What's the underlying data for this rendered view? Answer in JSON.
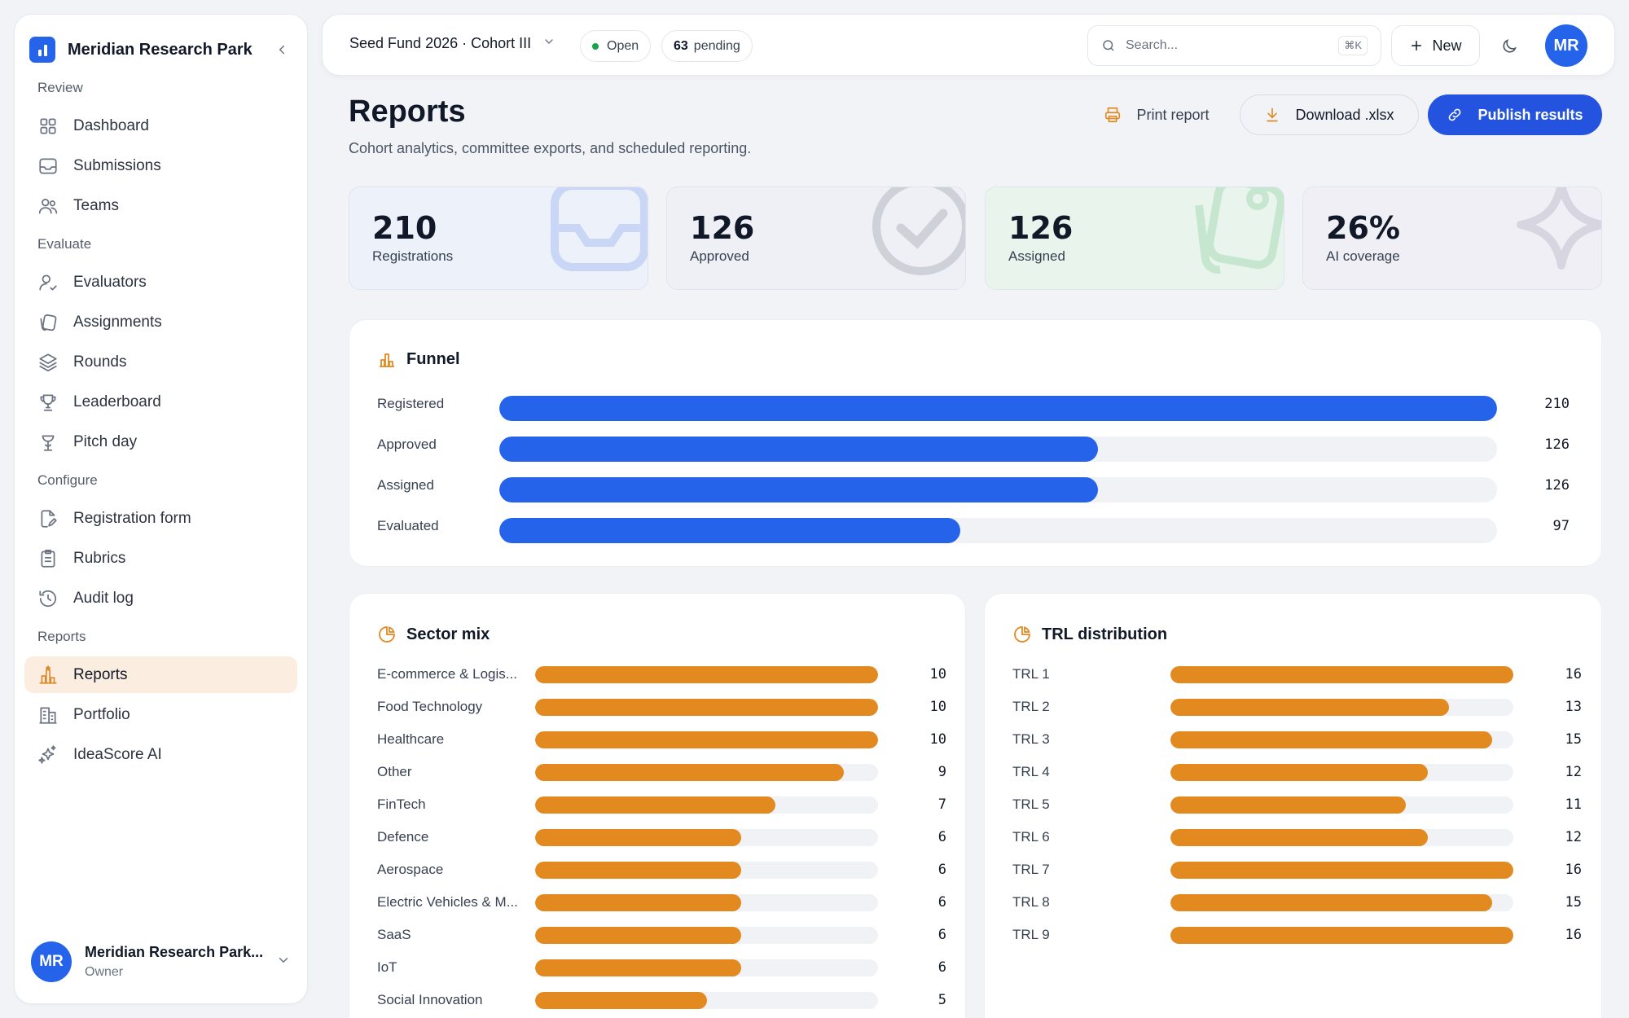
{
  "sidebar": {
    "brand": "Meridian Research Park",
    "sections": [
      {
        "label": "Review",
        "items": [
          {
            "label": "Dashboard",
            "icon": "dashboard-icon"
          },
          {
            "label": "Submissions",
            "icon": "inbox-icon"
          },
          {
            "label": "Teams",
            "icon": "users-icon"
          }
        ]
      },
      {
        "label": "Evaluate",
        "items": [
          {
            "label": "Evaluators",
            "icon": "user-check-icon"
          },
          {
            "label": "Assignments",
            "icon": "assignments-icon"
          },
          {
            "label": "Rounds",
            "icon": "layers-icon"
          },
          {
            "label": "Leaderboard",
            "icon": "trophy-icon"
          },
          {
            "label": "Pitch day",
            "icon": "presentation-icon"
          }
        ]
      },
      {
        "label": "Configure",
        "items": [
          {
            "label": "Registration form",
            "icon": "form-icon"
          },
          {
            "label": "Rubrics",
            "icon": "clipboard-icon"
          },
          {
            "label": "Audit log",
            "icon": "history-icon"
          }
        ]
      },
      {
        "label": "Reports",
        "items": [
          {
            "label": "Reports",
            "icon": "podium-icon",
            "active": true
          },
          {
            "label": "Portfolio",
            "icon": "building-icon"
          },
          {
            "label": "IdeaScore AI",
            "icon": "sparkles-icon"
          }
        ]
      }
    ],
    "user": {
      "initials": "MR",
      "name": "Meridian Research Park...",
      "role": "Owner"
    }
  },
  "topbar": {
    "cohort": "Seed Fund 2026 · Cohort III",
    "status": "Open",
    "pending_count": "63",
    "pending_label": "pending",
    "search_placeholder": "Search...",
    "search_shortcut": "⌘K",
    "new_label": "New",
    "avatar": "MR"
  },
  "page": {
    "title": "Reports",
    "subtitle": "Cohort analytics, committee exports, and scheduled reporting.",
    "print_label": "Print report",
    "download_label": "Download .xlsx",
    "publish_label": "Publish results"
  },
  "kpis": [
    {
      "value": "210",
      "label": "Registrations",
      "bg": "#edf1fa",
      "icon": "inbox-icon"
    },
    {
      "value": "126",
      "label": "Approved",
      "bg": "#eef0f6",
      "icon": "check-circle-icon"
    },
    {
      "value": "126",
      "label": "Assigned",
      "bg": "#e9f5ec",
      "icon": "assignments-icon"
    },
    {
      "value": "26%",
      "label": "AI coverage",
      "bg": "#f0eff6",
      "icon": "sparkle-icon"
    }
  ],
  "funnel": {
    "title": "Funnel",
    "color": "#2563eb",
    "max": 210,
    "rows": [
      {
        "label": "Registered",
        "value": 210
      },
      {
        "label": "Approved",
        "value": 126
      },
      {
        "label": "Assigned",
        "value": 126
      },
      {
        "label": "Evaluated",
        "value": 97
      }
    ]
  },
  "sector": {
    "title": "Sector mix",
    "color": "#e28a1f",
    "max": 10,
    "rows": [
      {
        "label": "E-commerce & Logis...",
        "value": 10
      },
      {
        "label": "Food Technology",
        "value": 10
      },
      {
        "label": "Healthcare",
        "value": 10
      },
      {
        "label": "Other",
        "value": 9
      },
      {
        "label": "FinTech",
        "value": 7
      },
      {
        "label": "Defence",
        "value": 6
      },
      {
        "label": "Aerospace",
        "value": 6
      },
      {
        "label": "Electric Vehicles & M...",
        "value": 6
      },
      {
        "label": "SaaS",
        "value": 6
      },
      {
        "label": "IoT",
        "value": 6
      },
      {
        "label": "Social Innovation",
        "value": 5
      }
    ]
  },
  "trl": {
    "title": "TRL distribution",
    "color": "#e28a1f",
    "max": 16,
    "rows": [
      {
        "label": "TRL 1",
        "value": 16
      },
      {
        "label": "TRL 2",
        "value": 13
      },
      {
        "label": "TRL 3",
        "value": 15
      },
      {
        "label": "TRL 4",
        "value": 12
      },
      {
        "label": "TRL 5",
        "value": 11
      },
      {
        "label": "TRL 6",
        "value": 12
      },
      {
        "label": "TRL 7",
        "value": 16
      },
      {
        "label": "TRL 8",
        "value": 15
      },
      {
        "label": "TRL 9",
        "value": 16
      }
    ]
  }
}
